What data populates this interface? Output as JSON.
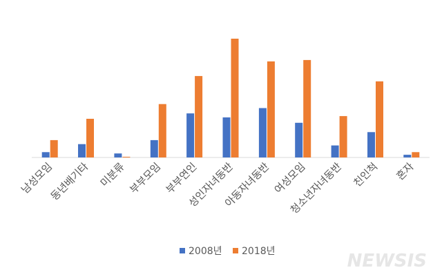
{
  "chart_data": {
    "type": "bar",
    "categories": [
      "남성모임",
      "동년배기타",
      "미분류",
      "부부모임",
      "부부연인",
      "성인자녀동반",
      "아동자녀동반",
      "여성모임",
      "청소년자녀동반",
      "친인척",
      "혼자"
    ],
    "series": [
      {
        "name": "2008년",
        "values": [
          4,
          10,
          3,
          13,
          33,
          30,
          37,
          26,
          9,
          19,
          2
        ]
      },
      {
        "name": "2018년",
        "values": [
          13,
          29,
          0.5,
          40,
          61,
          89,
          72,
          73,
          31,
          57,
          4
        ]
      }
    ],
    "title": "",
    "xlabel": "",
    "ylabel": "",
    "ylim": [
      0,
      89
    ],
    "grid": false,
    "legend": "bottom",
    "colors": {
      "series_2008": "#4472c4",
      "series_2018": "#ed7d31",
      "axis": "#d9d9d9",
      "text": "#595959"
    }
  },
  "watermark": "NEWSIS"
}
